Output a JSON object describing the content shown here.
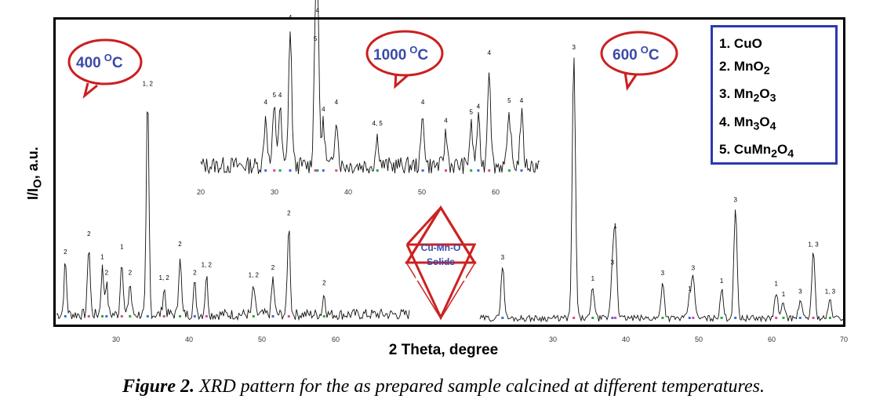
{
  "caption": {
    "prefix": "Figure 2.",
    "text": " XRD pattern for the as prepared sample calcined at different temperatures."
  },
  "ylabel": "I/I",
  "ylabel_sub": "O",
  "ylabel_suffix": ", a.u.",
  "xlabel": "2 Theta, degree",
  "bubbles": {
    "t400": "400",
    "t1000": "1000",
    "t600": "600",
    "unit_sup": "O",
    "unit": "C"
  },
  "star": {
    "line1": "Cu-Mn-O",
    "line2": "Solids"
  },
  "legend": [
    {
      "num": "1.",
      "name": "CuO"
    },
    {
      "num": "2.",
      "name": "MnO",
      "sub": "2"
    },
    {
      "num": "3.",
      "name": "Mn",
      "sub": "2",
      "name2": "O",
      "sub2": "3"
    },
    {
      "num": "4.",
      "name": "Mn",
      "sub": "3",
      "name2": "O",
      "sub2": "4"
    },
    {
      "num": "5.",
      "name": "CuMn",
      "sub": "2",
      "name2": "O",
      "sub2": "4"
    }
  ],
  "colors": {
    "bubble_border": "#cc1f1f",
    "bubble_text": "#3a4aa8",
    "legend_border": "#2b3ab0",
    "star": "#cc2222"
  },
  "chart_data": [
    {
      "type": "line",
      "panel": "400 °C",
      "xlim": [
        20,
        80
      ],
      "x_ticks": [
        "30",
        "40",
        "50",
        "60"
      ],
      "peaks": [
        {
          "x": 21.5,
          "h": 0.2,
          "label": "2"
        },
        {
          "x": 25.5,
          "h": 0.27,
          "label": "2"
        },
        {
          "x": 27.8,
          "h": 0.18,
          "label": "1"
        },
        {
          "x": 28.5,
          "h": 0.12,
          "label": "2"
        },
        {
          "x": 31.1,
          "h": 0.22,
          "label": "1"
        },
        {
          "x": 32.5,
          "h": 0.12,
          "label": "2"
        },
        {
          "x": 35.5,
          "h": 0.85,
          "label": "1, 2"
        },
        {
          "x": 38.3,
          "h": 0.1,
          "label": "1, 2"
        },
        {
          "x": 41.0,
          "h": 0.23,
          "label": "2"
        },
        {
          "x": 43.5,
          "h": 0.12,
          "label": "2"
        },
        {
          "x": 45.5,
          "h": 0.15,
          "label": "1, 2"
        },
        {
          "x": 53.5,
          "h": 0.11,
          "label": "1, 2"
        },
        {
          "x": 56.8,
          "h": 0.14,
          "label": "2"
        },
        {
          "x": 59.5,
          "h": 0.35,
          "label": "2"
        },
        {
          "x": 65.5,
          "h": 0.08,
          "label": "2"
        }
      ]
    },
    {
      "type": "line",
      "panel": "1000 °C",
      "xlim": [
        20,
        67
      ],
      "x_ticks": [
        "20",
        "30",
        "40",
        "50",
        "60"
      ],
      "peaks": [
        {
          "x": 29.0,
          "h": 0.35,
          "label": "4"
        },
        {
          "x": 30.2,
          "h": 0.4,
          "label": "5"
        },
        {
          "x": 31.0,
          "h": 0.4,
          "label": "4"
        },
        {
          "x": 32.4,
          "h": 0.95,
          "label": "4"
        },
        {
          "x": 35.9,
          "h": 0.8,
          "label": "5"
        },
        {
          "x": 36.2,
          "h": 1.0,
          "label": "4"
        },
        {
          "x": 37.0,
          "h": 0.3,
          "label": "4"
        },
        {
          "x": 38.8,
          "h": 0.35,
          "label": "4"
        },
        {
          "x": 44.5,
          "h": 0.2,
          "label": "4, 5"
        },
        {
          "x": 50.8,
          "h": 0.35,
          "label": "4"
        },
        {
          "x": 54.0,
          "h": 0.22,
          "label": "4"
        },
        {
          "x": 57.5,
          "h": 0.28,
          "label": "5"
        },
        {
          "x": 58.5,
          "h": 0.32,
          "label": "4"
        },
        {
          "x": 60.0,
          "h": 0.7,
          "label": "4"
        },
        {
          "x": 62.8,
          "h": 0.36,
          "label": "5"
        },
        {
          "x": 64.5,
          "h": 0.36,
          "label": "4"
        }
      ]
    },
    {
      "type": "line",
      "panel": "600 °C",
      "xlim": [
        20,
        70
      ],
      "x_ticks": [
        "30",
        "40",
        "50",
        "60",
        "70"
      ],
      "peaks": [
        {
          "x": 23.1,
          "h": 0.2,
          "label": "3"
        },
        {
          "x": 32.9,
          "h": 1.0,
          "label": "3"
        },
        {
          "x": 35.5,
          "h": 0.12,
          "label": "1"
        },
        {
          "x": 38.2,
          "h": 0.18,
          "label": "3"
        },
        {
          "x": 38.6,
          "h": 0.32,
          "label": "1"
        },
        {
          "x": 45.1,
          "h": 0.14,
          "label": "3"
        },
        {
          "x": 48.8,
          "h": 0.08,
          "label": "1"
        },
        {
          "x": 49.3,
          "h": 0.16,
          "label": "3"
        },
        {
          "x": 53.2,
          "h": 0.11,
          "label": "1"
        },
        {
          "x": 55.1,
          "h": 0.42,
          "label": "3"
        },
        {
          "x": 60.7,
          "h": 0.1,
          "label": "1"
        },
        {
          "x": 61.7,
          "h": 0.06,
          "label": "1"
        },
        {
          "x": 64.0,
          "h": 0.07,
          "label": "3"
        },
        {
          "x": 65.8,
          "h": 0.25,
          "label": "1, 3"
        },
        {
          "x": 68.1,
          "h": 0.07,
          "label": "1, 3"
        }
      ]
    }
  ]
}
